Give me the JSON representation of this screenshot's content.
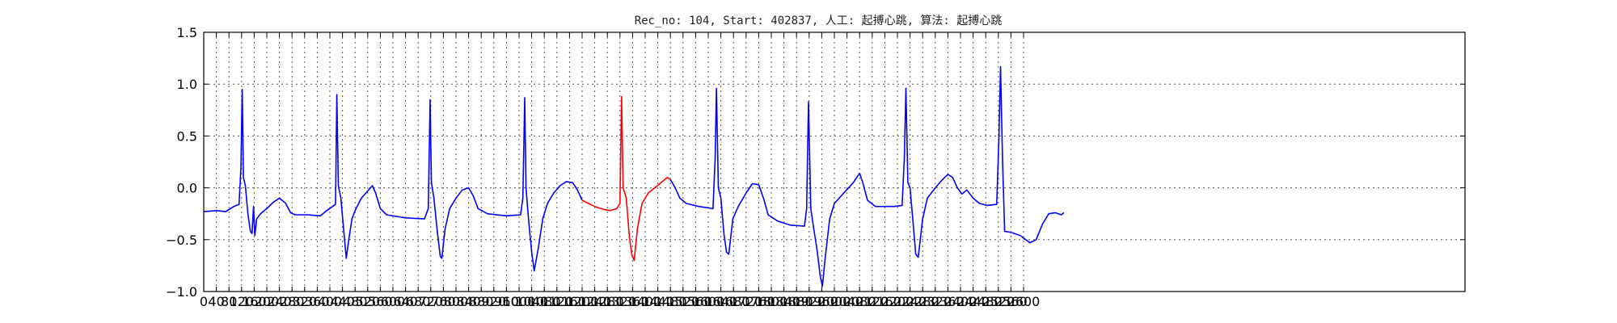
{
  "chart_data": {
    "type": "line",
    "title": "Rec_no: 104, Start: 402837, 人工: 起搏心跳, 算法: 起搏心跳",
    "xlabel": "",
    "ylabel": "",
    "xlim": [
      0,
      4000
    ],
    "ylim": [
      -1.0,
      1.5
    ],
    "grid": true,
    "yticks": [
      -1.0,
      -0.5,
      0.0,
      0.5,
      1.0,
      1.5
    ],
    "ytick_labels": [
      "−1.0",
      "−0.5",
      "0.0",
      "0.5",
      "1.0",
      "1.5"
    ],
    "xticks": [
      0,
      40,
      80,
      120,
      160,
      200,
      240,
      280,
      320,
      360,
      400,
      440,
      480,
      520,
      560,
      600,
      640,
      680,
      720,
      760,
      800,
      840,
      880,
      920,
      960,
      1000,
      1040,
      1080,
      1120,
      1160,
      1200,
      1240,
      1280,
      1320,
      1360,
      1400,
      1440,
      1480,
      1520,
      1560,
      1600,
      1640,
      1680,
      1720,
      1760,
      1800,
      1840,
      1880,
      1920,
      1960,
      2000,
      2040,
      2080,
      2120,
      2160,
      2200,
      2240,
      2280,
      2320,
      2360,
      2400,
      2440,
      2480,
      2520,
      2560,
      2600
    ],
    "series": [
      {
        "color": "#0000ff",
        "segments": [
          [
            [
              0,
              -0.23
            ],
            [
              40,
              -0.22
            ],
            [
              70,
              -0.23
            ],
            [
              95,
              -0.18
            ],
            [
              112,
              -0.16
            ],
            [
              118,
              0.2
            ],
            [
              122,
              0.95
            ],
            [
              126,
              0.1
            ],
            [
              132,
              0.02
            ],
            [
              140,
              -0.25
            ],
            [
              148,
              -0.42
            ],
            [
              153,
              -0.44
            ],
            [
              158,
              -0.18
            ],
            [
              162,
              -0.46
            ],
            [
              168,
              -0.3
            ],
            [
              180,
              -0.25
            ],
            [
              200,
              -0.2
            ],
            [
              220,
              -0.14
            ],
            [
              240,
              -0.1
            ],
            [
              260,
              -0.15
            ],
            [
              275,
              -0.24
            ],
            [
              290,
              -0.26
            ],
            [
              330,
              -0.26
            ],
            [
              370,
              -0.27
            ],
            [
              390,
              -0.22
            ],
            [
              418,
              -0.16
            ],
            [
              422,
              0.9
            ],
            [
              427,
              0.02
            ],
            [
              435,
              -0.1
            ],
            [
              445,
              -0.45
            ],
            [
              452,
              -0.68
            ],
            [
              460,
              -0.5
            ],
            [
              470,
              -0.3
            ],
            [
              480,
              -0.22
            ],
            [
              500,
              -0.1
            ],
            [
              520,
              -0.03
            ],
            [
              535,
              0.02
            ],
            [
              545,
              -0.05
            ],
            [
              560,
              -0.2
            ],
            [
              580,
              -0.26
            ],
            [
              640,
              -0.29
            ],
            [
              700,
              -0.3
            ],
            [
              712,
              -0.2
            ],
            [
              718,
              0.85
            ],
            [
              722,
              0.05
            ],
            [
              730,
              -0.1
            ],
            [
              740,
              -0.4
            ],
            [
              750,
              -0.66
            ],
            [
              755,
              -0.68
            ],
            [
              765,
              -0.4
            ],
            [
              780,
              -0.2
            ],
            [
              800,
              -0.1
            ],
            [
              820,
              -0.02
            ],
            [
              840,
              0.0
            ],
            [
              855,
              -0.08
            ],
            [
              870,
              -0.2
            ],
            [
              900,
              -0.25
            ],
            [
              960,
              -0.27
            ],
            [
              1005,
              -0.26
            ],
            [
              1012,
              -0.1
            ],
            [
              1018,
              0.87
            ],
            [
              1022,
              0.0
            ],
            [
              1030,
              -0.3
            ],
            [
              1040,
              -0.62
            ],
            [
              1048,
              -0.8
            ],
            [
              1060,
              -0.6
            ],
            [
              1075,
              -0.3
            ],
            [
              1090,
              -0.15
            ],
            [
              1110,
              -0.05
            ],
            [
              1130,
              0.02
            ],
            [
              1150,
              0.06
            ],
            [
              1170,
              0.05
            ],
            [
              1185,
              -0.02
            ],
            [
              1200,
              -0.12
            ]
          ]
        ]
      },
      {
        "color": "#ff0000",
        "segments": [
          [
            [
              1200,
              -0.12
            ],
            [
              1240,
              -0.18
            ],
            [
              1270,
              -0.21
            ],
            [
              1290,
              -0.22
            ],
            [
              1310,
              -0.2
            ],
            [
              1320,
              -0.15
            ],
            [
              1325,
              0.88
            ],
            [
              1330,
              0.0
            ],
            [
              1340,
              -0.1
            ],
            [
              1350,
              -0.48
            ],
            [
              1358,
              -0.65
            ],
            [
              1365,
              -0.7
            ],
            [
              1375,
              -0.4
            ],
            [
              1390,
              -0.15
            ],
            [
              1410,
              -0.05
            ],
            [
              1430,
              0.0
            ],
            [
              1450,
              0.05
            ],
            [
              1470,
              0.1
            ],
            [
              1480,
              0.08
            ]
          ]
        ]
      },
      {
        "color": "#0000ff",
        "segments": [
          [
            [
              1480,
              0.08
            ],
            [
              1495,
              0.0
            ],
            [
              1510,
              -0.1
            ],
            [
              1530,
              -0.15
            ],
            [
              1570,
              -0.18
            ],
            [
              1615,
              -0.2
            ],
            [
              1622,
              0.3
            ],
            [
              1626,
              0.96
            ],
            [
              1632,
              0.0
            ],
            [
              1640,
              -0.1
            ],
            [
              1650,
              -0.45
            ],
            [
              1658,
              -0.62
            ],
            [
              1665,
              -0.64
            ],
            [
              1678,
              -0.3
            ],
            [
              1695,
              -0.18
            ],
            [
              1720,
              -0.05
            ],
            [
              1740,
              0.04
            ],
            [
              1760,
              0.03
            ],
            [
              1775,
              -0.1
            ],
            [
              1790,
              -0.26
            ],
            [
              1820,
              -0.32
            ],
            [
              1860,
              -0.36
            ],
            [
              1905,
              -0.37
            ],
            [
              1912,
              -0.2
            ],
            [
              1918,
              0.83
            ],
            [
              1925,
              -0.2
            ],
            [
              1935,
              -0.4
            ],
            [
              1945,
              -0.6
            ],
            [
              1955,
              -0.85
            ],
            [
              1962,
              -0.95
            ],
            [
              1970,
              -0.7
            ],
            [
              1985,
              -0.3
            ],
            [
              2000,
              -0.15
            ],
            [
              2030,
              -0.05
            ],
            [
              2060,
              0.05
            ],
            [
              2080,
              0.14
            ],
            [
              2090,
              0.05
            ],
            [
              2105,
              -0.12
            ],
            [
              2130,
              -0.18
            ],
            [
              2190,
              -0.18
            ],
            [
              2215,
              -0.17
            ],
            [
              2222,
              0.3
            ],
            [
              2227,
              0.96
            ],
            [
              2233,
              0.05
            ],
            [
              2240,
              0.0
            ],
            [
              2250,
              -0.35
            ],
            [
              2258,
              -0.64
            ],
            [
              2266,
              -0.67
            ],
            [
              2280,
              -0.3
            ],
            [
              2295,
              -0.1
            ],
            [
              2320,
              0.0
            ],
            [
              2340,
              0.07
            ],
            [
              2360,
              0.13
            ],
            [
              2375,
              0.1
            ],
            [
              2390,
              0.0
            ],
            [
              2405,
              -0.06
            ],
            [
              2420,
              -0.02
            ],
            [
              2440,
              -0.1
            ],
            [
              2460,
              -0.15
            ],
            [
              2485,
              -0.17
            ],
            [
              2515,
              -0.16
            ],
            [
              2522,
              0.5
            ],
            [
              2527,
              1.17
            ],
            [
              2533,
              0.3
            ],
            [
              2540,
              -0.42
            ],
            [
              2560,
              -0.43
            ],
            [
              2590,
              -0.46
            ],
            [
              2620,
              -0.53
            ],
            [
              2640,
              -0.5
            ],
            [
              2660,
              -0.35
            ],
            [
              2680,
              -0.25
            ],
            [
              2700,
              -0.24
            ],
            [
              2720,
              -0.26
            ],
            [
              2728,
              -0.24
            ]
          ]
        ]
      }
    ]
  }
}
